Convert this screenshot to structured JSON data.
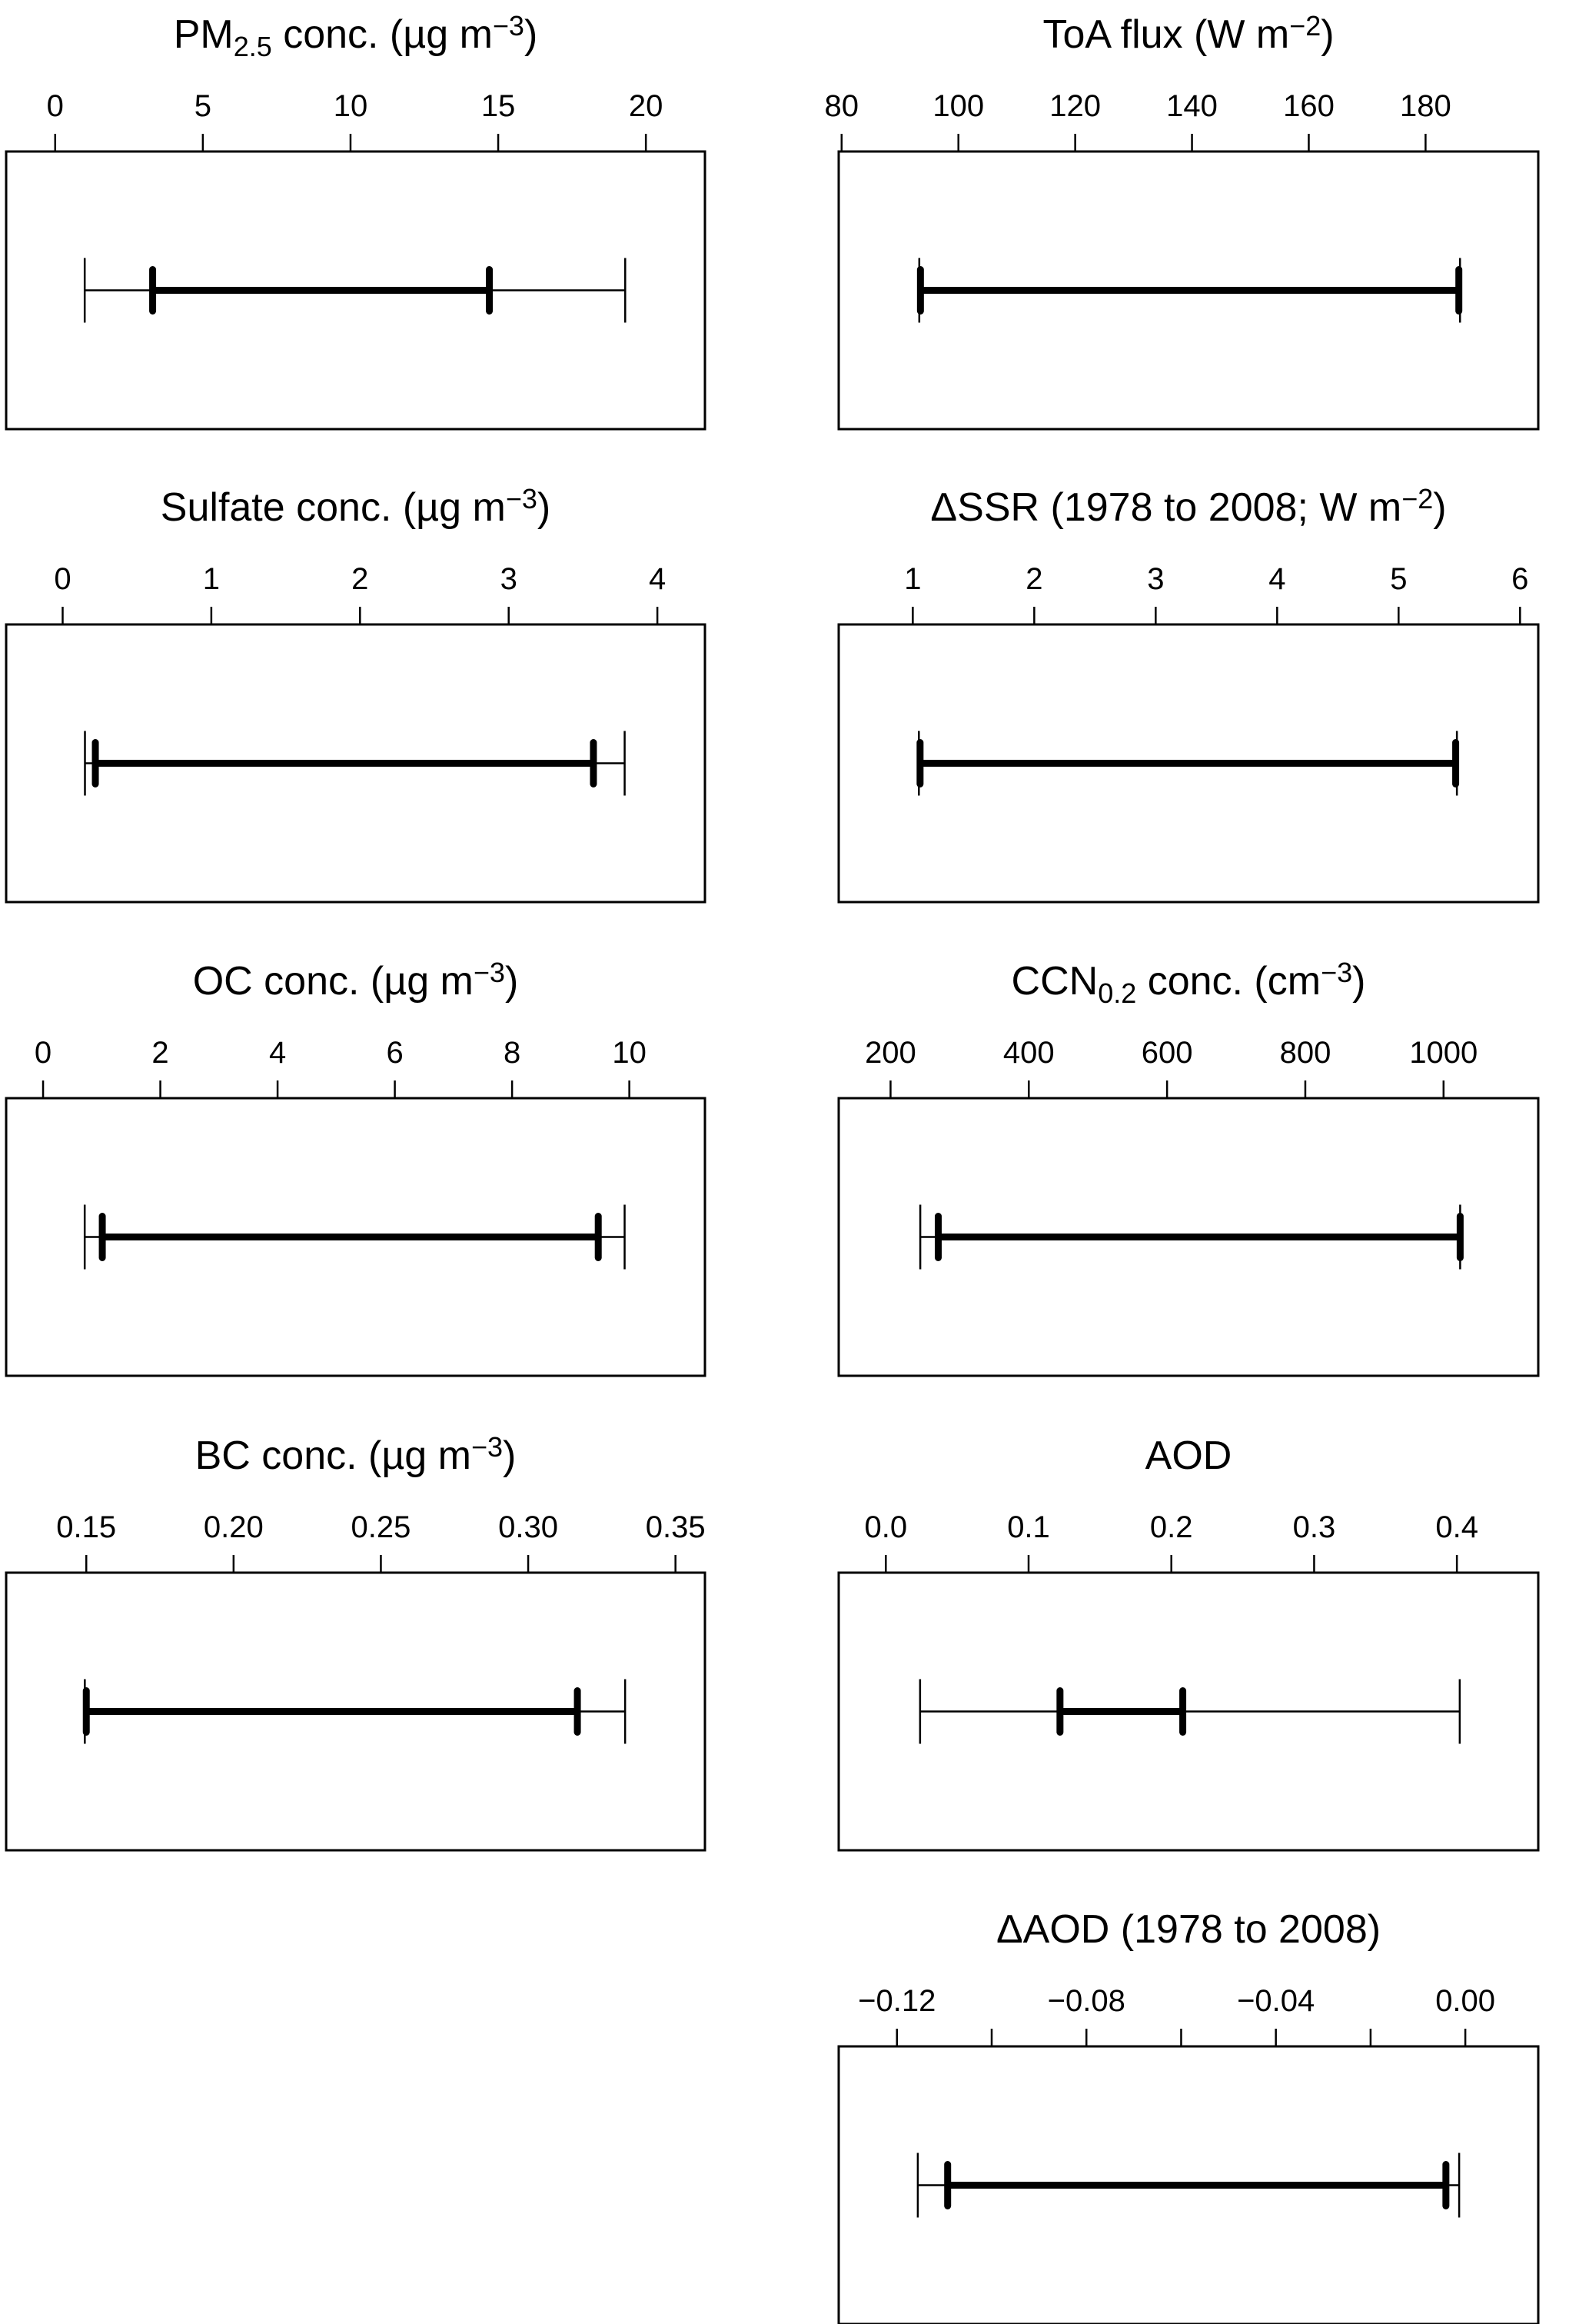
{
  "chart_data": [
    {
      "type": "interval",
      "title": [
        {
          "t": "PM"
        },
        {
          "t": "2.5",
          "s": "sub"
        },
        {
          "t": " conc. (µg m"
        },
        {
          "t": "−3",
          "s": "sup"
        },
        {
          "t": ")"
        }
      ],
      "ticks": [
        0,
        5,
        10,
        15,
        20
      ],
      "tick_labels": [
        "0",
        "5",
        "10",
        "15",
        "20"
      ],
      "minor_ticks": [],
      "xlim": [
        -1.66,
        22.0
      ],
      "outer_range": [
        1.0,
        19.3
      ],
      "inner_range": [
        3.3,
        14.7
      ]
    },
    {
      "type": "interval",
      "title": [
        {
          "t": "ToA flux (W m"
        },
        {
          "t": "−2",
          "s": "sup"
        },
        {
          "t": ")"
        }
      ],
      "ticks": [
        80,
        100,
        120,
        140,
        160,
        180
      ],
      "tick_labels": [
        "80",
        "100",
        "120",
        "140",
        "160",
        "180"
      ],
      "minor_ticks": [],
      "xlim": [
        79.5,
        199.3
      ],
      "outer_range": [
        93.3,
        185.9
      ],
      "inner_range": [
        93.5,
        185.7
      ]
    },
    {
      "type": "interval",
      "title": [
        {
          "t": "Sulfate conc. (µg m"
        },
        {
          "t": "−3",
          "s": "sup"
        },
        {
          "t": ")"
        }
      ],
      "ticks": [
        0,
        1,
        2,
        3,
        4
      ],
      "tick_labels": [
        "0",
        "1",
        "2",
        "3",
        "4"
      ],
      "minor_ticks": [],
      "xlim": [
        -0.38,
        4.32
      ],
      "outer_range": [
        0.15,
        3.78
      ],
      "inner_range": [
        0.22,
        3.57
      ]
    },
    {
      "type": "interval",
      "title": [
        {
          "t": "ΔSSR (1978 to 2008; W m"
        },
        {
          "t": "−2",
          "s": "sup"
        },
        {
          "t": ")"
        }
      ],
      "ticks": [
        1,
        2,
        3,
        4,
        5,
        6
      ],
      "tick_labels": [
        "1",
        "2",
        "3",
        "4",
        "5",
        "6"
      ],
      "minor_ticks": [],
      "xlim": [
        0.39,
        6.15
      ],
      "outer_range": [
        1.05,
        5.48
      ],
      "inner_range": [
        1.06,
        5.47
      ]
    },
    {
      "type": "interval",
      "title": [
        {
          "t": "OC conc. (µg m"
        },
        {
          "t": "−3",
          "s": "sup"
        },
        {
          "t": ")"
        }
      ],
      "ticks": [
        0,
        2,
        4,
        6,
        8,
        10
      ],
      "tick_labels": [
        "0",
        "2",
        "4",
        "6",
        "8",
        "10"
      ],
      "minor_ticks": [],
      "xlim": [
        -0.63,
        11.29
      ],
      "outer_range": [
        0.71,
        9.92
      ],
      "inner_range": [
        1.01,
        9.47
      ]
    },
    {
      "type": "interval",
      "title": [
        {
          "t": "CCN"
        },
        {
          "t": "0.2",
          "s": "sub"
        },
        {
          "t": " conc. (cm"
        },
        {
          "t": "−3",
          "s": "sup"
        },
        {
          "t": ")"
        }
      ],
      "ticks": [
        200,
        400,
        600,
        800,
        1000
      ],
      "tick_labels": [
        "200",
        "400",
        "600",
        "800",
        "1000"
      ],
      "minor_ticks": [],
      "xlim": [
        125,
        1137
      ],
      "outer_range": [
        243,
        1024
      ],
      "inner_range": [
        269,
        1024
      ]
    },
    {
      "type": "interval",
      "title": [
        {
          "t": "BC conc. (µg m"
        },
        {
          "t": "−3",
          "s": "sup"
        },
        {
          "t": ")"
        }
      ],
      "ticks": [
        0.15,
        0.2,
        0.25,
        0.3,
        0.35
      ],
      "tick_labels": [
        "0.15",
        "0.20",
        "0.25",
        "0.30",
        "0.35"
      ],
      "minor_ticks": [],
      "xlim": [
        0.1228,
        0.36
      ],
      "outer_range": [
        0.1495,
        0.3329
      ],
      "inner_range": [
        0.15,
        0.3167
      ]
    },
    {
      "type": "interval",
      "title": [
        {
          "t": "AOD"
        }
      ],
      "ticks": [
        0.0,
        0.1,
        0.2,
        0.3,
        0.4
      ],
      "tick_labels": [
        "0.0",
        "0.1",
        "0.2",
        "0.3",
        "0.4"
      ],
      "minor_ticks": [],
      "xlim": [
        -0.033,
        0.457
      ],
      "outer_range": [
        0.024,
        0.402
      ],
      "inner_range": [
        0.122,
        0.208
      ]
    },
    {
      "type": "interval",
      "title": [
        {
          "t": "ΔAOD (1978 to 2008)"
        }
      ],
      "ticks": [
        -0.12,
        -0.08,
        -0.04,
        0.0
      ],
      "tick_labels": [
        "−0.12",
        "−0.08",
        "−0.04",
        "0.00"
      ],
      "minor_ticks": [
        -0.1,
        -0.06,
        -0.02
      ],
      "xlim": [
        -0.1323,
        0.0154
      ],
      "outer_range": [
        -0.1156,
        -0.0013
      ],
      "inner_range": [
        -0.1093,
        -0.0041
      ]
    }
  ]
}
